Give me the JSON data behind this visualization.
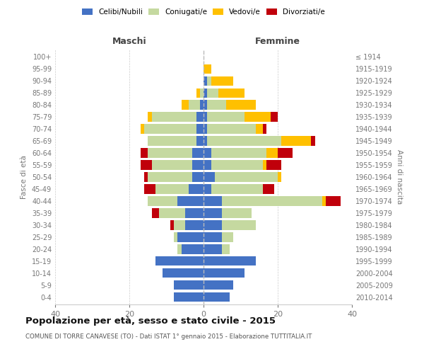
{
  "age_groups": [
    "0-4",
    "5-9",
    "10-14",
    "15-19",
    "20-24",
    "25-29",
    "30-34",
    "35-39",
    "40-44",
    "45-49",
    "50-54",
    "55-59",
    "60-64",
    "65-69",
    "70-74",
    "75-79",
    "80-84",
    "85-89",
    "90-94",
    "95-99",
    "100+"
  ],
  "birth_years": [
    "2010-2014",
    "2005-2009",
    "2000-2004",
    "1995-1999",
    "1990-1994",
    "1985-1989",
    "1980-1984",
    "1975-1979",
    "1970-1974",
    "1965-1969",
    "1960-1964",
    "1955-1959",
    "1950-1954",
    "1945-1949",
    "1940-1944",
    "1935-1939",
    "1930-1934",
    "1925-1929",
    "1920-1924",
    "1915-1919",
    "≤ 1914"
  ],
  "colors": {
    "celibi": "#4472C4",
    "coniugati": "#c5d9a0",
    "vedovi": "#ffc000",
    "divorziati": "#c0000b"
  },
  "maschi": {
    "celibi": [
      8,
      8,
      11,
      13,
      6,
      7,
      5,
      5,
      7,
      4,
      3,
      3,
      3,
      2,
      2,
      2,
      1,
      0,
      0,
      0,
      0
    ],
    "coniugati": [
      0,
      0,
      0,
      0,
      1,
      1,
      3,
      7,
      8,
      9,
      12,
      11,
      12,
      13,
      14,
      12,
      3,
      1,
      0,
      0,
      0
    ],
    "vedovi": [
      0,
      0,
      0,
      0,
      0,
      0,
      0,
      0,
      0,
      0,
      0,
      0,
      0,
      0,
      1,
      1,
      2,
      1,
      0,
      0,
      0
    ],
    "divorziati": [
      0,
      0,
      0,
      0,
      0,
      0,
      1,
      2,
      0,
      3,
      1,
      3,
      2,
      0,
      0,
      0,
      0,
      0,
      0,
      0,
      0
    ]
  },
  "femmine": {
    "celibi": [
      7,
      8,
      11,
      14,
      5,
      5,
      5,
      5,
      5,
      2,
      3,
      2,
      2,
      1,
      1,
      1,
      1,
      1,
      1,
      0,
      0
    ],
    "coniugati": [
      0,
      0,
      0,
      0,
      2,
      3,
      9,
      8,
      27,
      14,
      17,
      14,
      15,
      20,
      13,
      10,
      5,
      3,
      1,
      0,
      0
    ],
    "vedovi": [
      0,
      0,
      0,
      0,
      0,
      0,
      0,
      0,
      1,
      0,
      1,
      1,
      3,
      8,
      2,
      7,
      8,
      7,
      6,
      2,
      0
    ],
    "divorziati": [
      0,
      0,
      0,
      0,
      0,
      0,
      0,
      0,
      4,
      3,
      0,
      4,
      4,
      1,
      1,
      2,
      0,
      0,
      0,
      0,
      0
    ]
  },
  "xlim": 40,
  "title": "Popolazione per età, sesso e stato civile - 2015",
  "subtitle": "COMUNE DI TORRE CANAVESE (TO) - Dati ISTAT 1° gennaio 2015 - Elaborazione TUTTITALIA.IT",
  "ylabel_left": "Fasce di età",
  "ylabel_right": "Anni di nascita",
  "xlabel_maschi": "Maschi",
  "xlabel_femmine": "Femmine",
  "legend_labels": [
    "Celibi/Nubili",
    "Coniugati/e",
    "Vedovi/e",
    "Divorziati/e"
  ],
  "bg_color": "#ffffff",
  "grid_color": "#cccccc",
  "tick_color": "#777777"
}
